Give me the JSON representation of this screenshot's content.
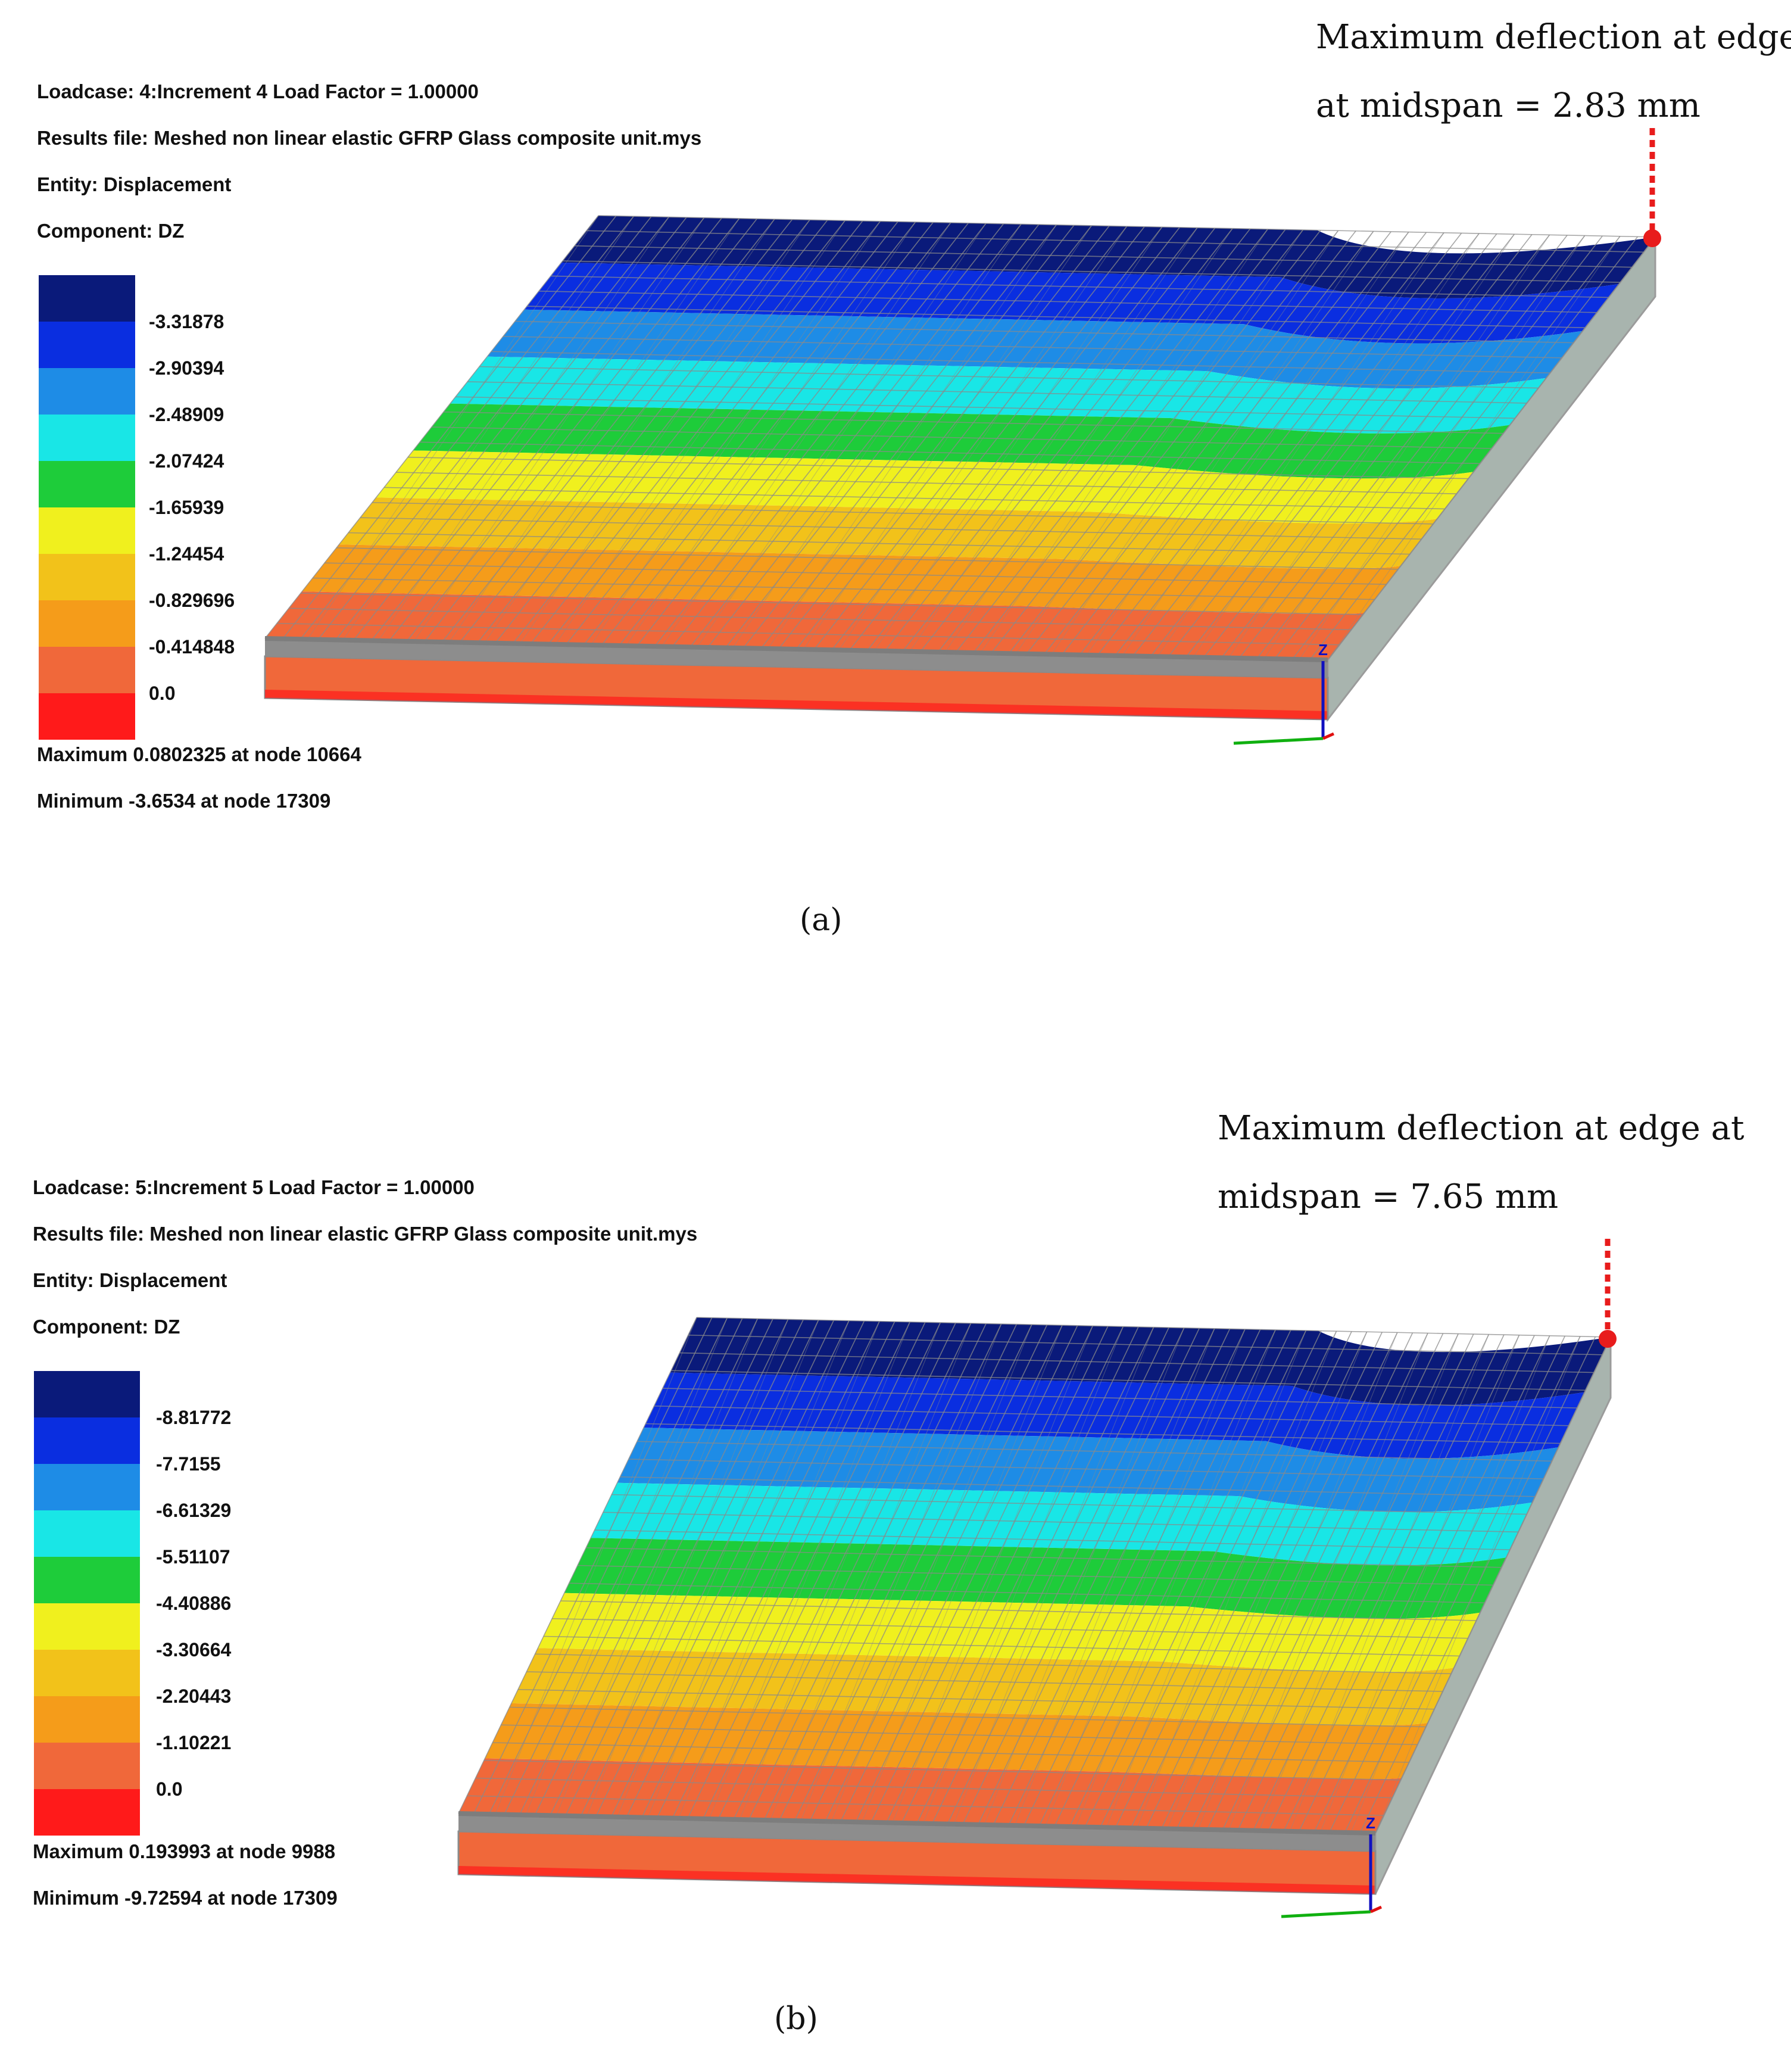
{
  "panels": [
    {
      "id": "a",
      "loadcase": "Loadcase: 4:Increment 4 Load Factor = 1.00000",
      "results_file": "Results file: Meshed non linear elastic GFRP Glass composite unit.mys",
      "entity": "Entity: Displacement",
      "component": "Component: DZ",
      "legend_levels": [
        "-3.31878",
        "-2.90394",
        "-2.48909",
        "-2.07424",
        "-1.65939",
        "-1.24454",
        "-0.829696",
        "-0.414848",
        "0.0"
      ],
      "maximum": "Maximum 0.0802325 at node 10664",
      "minimum": "Minimum -3.6534 at node 17309",
      "annotation_line1": "Maximum deflection at edge",
      "annotation_line2": "at midspan = 2.83 mm",
      "caption": "(a)"
    },
    {
      "id": "b",
      "loadcase": "Loadcase: 5:Increment 5 Load Factor = 1.00000",
      "results_file": "Results file: Meshed non linear elastic GFRP Glass composite unit.mys",
      "entity": "Entity: Displacement",
      "component": "Component: DZ",
      "legend_levels": [
        "-8.81772",
        "-7.7155",
        "-6.61329",
        "-5.51107",
        "-4.40886",
        "-3.30664",
        "-2.20443",
        "-1.10221",
        "0.0"
      ],
      "maximum": "Maximum 0.193993 at node 9988",
      "minimum": "Minimum -9.72594 at node 17309",
      "annotation_line1": "Maximum deflection at edge at",
      "annotation_line2": "midspan = 7.65 mm",
      "caption": "(b)"
    }
  ],
  "contour_colors": [
    "#0a1a7a",
    "#0a2ee0",
    "#1e8ce6",
    "#19e6e6",
    "#1ecc3a",
    "#f0f01e",
    "#f2c21a",
    "#f59c1a",
    "#f0683a",
    "#ff1a1a"
  ],
  "mesh_color": "#8a8a8a",
  "marker_color": "#e81c1c",
  "axis_labels": {
    "z": "Z"
  }
}
